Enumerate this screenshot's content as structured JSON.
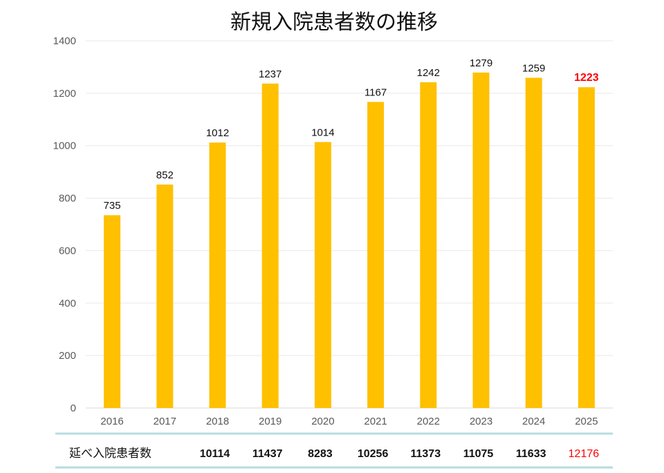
{
  "chart_data": {
    "type": "bar",
    "title": "新規入院患者数の推移",
    "categories": [
      "2016",
      "2017",
      "2018",
      "2019",
      "2020",
      "2021",
      "2022",
      "2023",
      "2024",
      "2025"
    ],
    "values": [
      735,
      852,
      1012,
      1237,
      1014,
      1167,
      1242,
      1279,
      1259,
      1223
    ],
    "ylim": [
      0,
      1400
    ],
    "yticks": [
      0,
      200,
      400,
      600,
      800,
      1000,
      1200,
      1400
    ],
    "grid": true,
    "bar_color": "#FFC000",
    "highlight_color": "#FF0000",
    "highlight_index": 9,
    "table": {
      "label": "延べ入院患者数",
      "values": [
        "10114",
        "11437",
        "8283",
        "10256",
        "11373",
        "11075",
        "11633",
        "12176"
      ],
      "columns": [
        "2018",
        "2019",
        "2020",
        "2021",
        "2022",
        "2023",
        "2024",
        "2025"
      ],
      "line_color": "#B4DDE0"
    }
  }
}
